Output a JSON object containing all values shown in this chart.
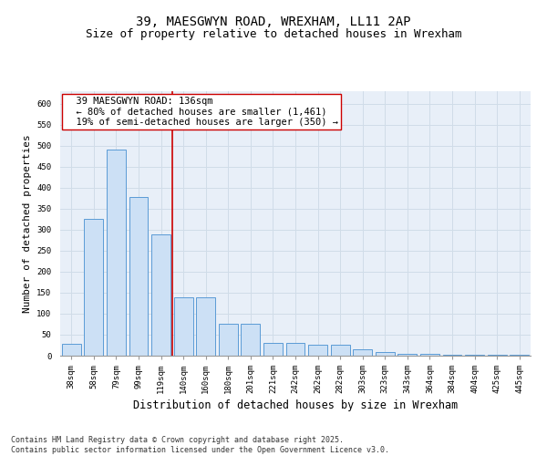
{
  "title_line1": "39, MAESGWYN ROAD, WREXHAM, LL11 2AP",
  "title_line2": "Size of property relative to detached houses in Wrexham",
  "xlabel": "Distribution of detached houses by size in Wrexham",
  "ylabel": "Number of detached properties",
  "bins": [
    "38sqm",
    "58sqm",
    "79sqm",
    "99sqm",
    "119sqm",
    "140sqm",
    "160sqm",
    "180sqm",
    "201sqm",
    "221sqm",
    "242sqm",
    "262sqm",
    "282sqm",
    "303sqm",
    "323sqm",
    "343sqm",
    "364sqm",
    "384sqm",
    "404sqm",
    "425sqm",
    "445sqm"
  ],
  "values": [
    28,
    325,
    490,
    378,
    290,
    140,
    140,
    76,
    76,
    30,
    30,
    25,
    25,
    15,
    8,
    4,
    4,
    2,
    2,
    2,
    2
  ],
  "bar_color": "#cce0f5",
  "bar_edge_color": "#5b9bd5",
  "vline_color": "#cc0000",
  "annotation_text": "  39 MAESGWYN ROAD: 136sqm\n  ← 80% of detached houses are smaller (1,461)\n  19% of semi-detached houses are larger (350) →",
  "annotation_box_color": "#ffffff",
  "annotation_box_edge": "#cc0000",
  "ylim": [
    0,
    630
  ],
  "yticks": [
    0,
    50,
    100,
    150,
    200,
    250,
    300,
    350,
    400,
    450,
    500,
    550,
    600
  ],
  "grid_color": "#d0dce8",
  "bg_color": "#e8eff8",
  "footer": "Contains HM Land Registry data © Crown copyright and database right 2025.\nContains public sector information licensed under the Open Government Licence v3.0.",
  "title_fontsize": 10,
  "subtitle_fontsize": 9,
  "axis_label_fontsize": 8,
  "tick_fontsize": 6.5,
  "annotation_fontsize": 7.5,
  "footer_fontsize": 6,
  "vline_x_index": 4.5
}
